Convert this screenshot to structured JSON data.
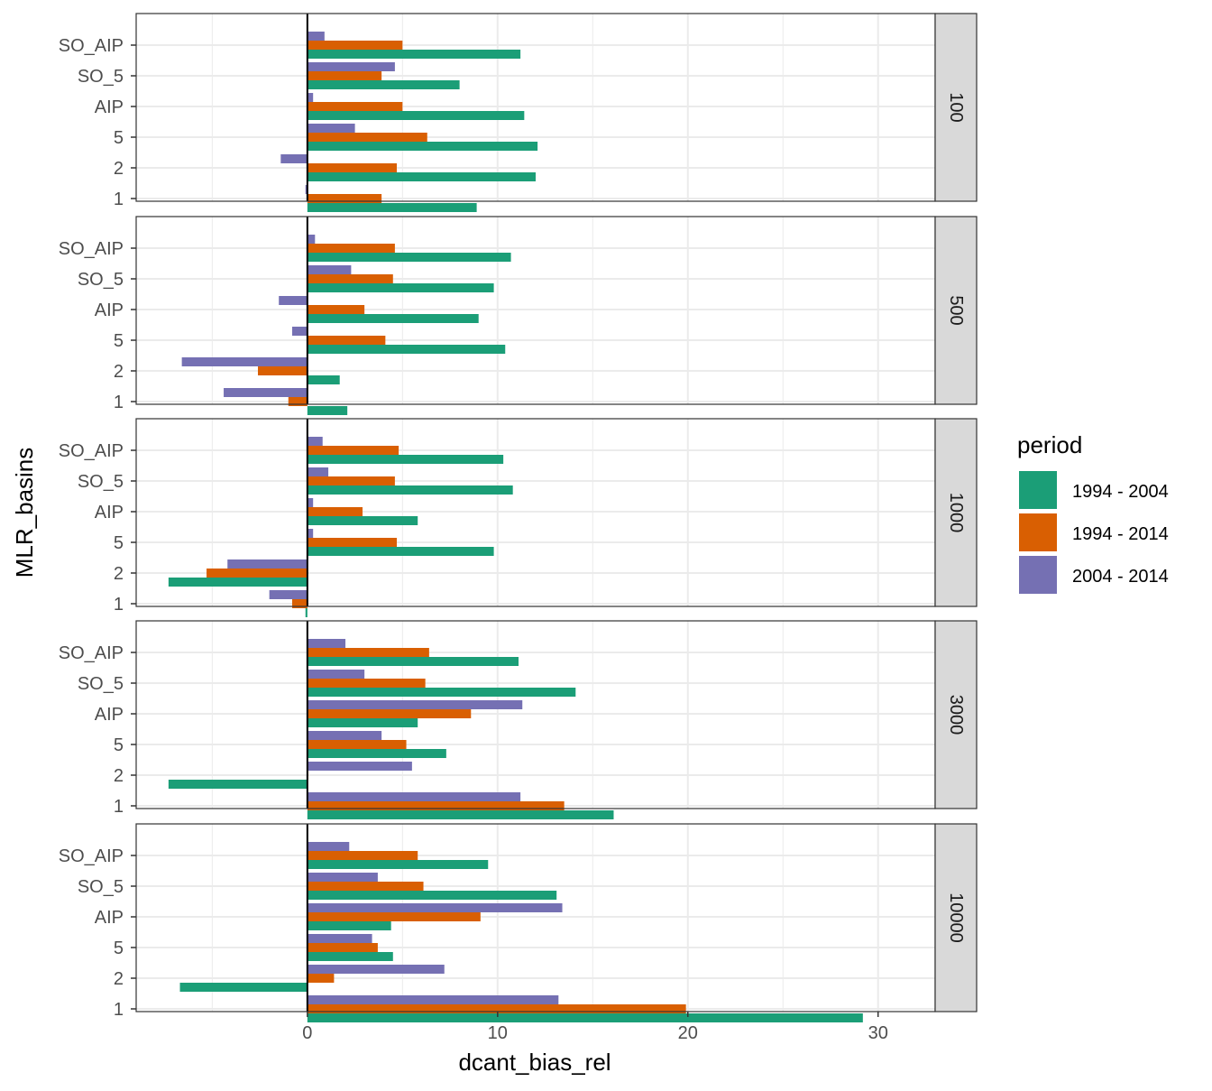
{
  "chart_data": {
    "type": "bar",
    "orientation": "horizontal",
    "facet_by": "rows",
    "xlabel": "dcant_bias_rel",
    "ylabel": "MLR_basins",
    "xlim": [
      -9,
      33
    ],
    "x_ticks": [
      0,
      10,
      20,
      30
    ],
    "grid": true,
    "categories": [
      "SO_AIP",
      "SO_5",
      "AIP",
      "5",
      "2",
      "1"
    ],
    "legend": {
      "title": "period",
      "position": "right",
      "entries": [
        "1994 - 2004",
        "1994 - 2014",
        "2004 - 2014"
      ]
    },
    "colors": {
      "1994 - 2004": "#1b9e77",
      "1994 - 2014": "#d95f02",
      "2004 - 2014": "#7570b3"
    },
    "facets": [
      {
        "label": "100",
        "series": [
          {
            "name": "1994 - 2004",
            "values": [
              11.2,
              8.0,
              11.4,
              12.1,
              12.0,
              8.9
            ]
          },
          {
            "name": "1994 - 2014",
            "values": [
              5.0,
              3.9,
              5.0,
              6.3,
              4.7,
              3.9
            ]
          },
          {
            "name": "2004 - 2014",
            "values": [
              0.9,
              4.6,
              0.3,
              2.5,
              -1.4,
              -0.1
            ]
          }
        ]
      },
      {
        "label": "500",
        "series": [
          {
            "name": "1994 - 2004",
            "values": [
              10.7,
              9.8,
              9.0,
              10.4,
              1.7,
              2.1
            ]
          },
          {
            "name": "1994 - 2014",
            "values": [
              4.6,
              4.5,
              3.0,
              4.1,
              -2.6,
              -1.0
            ]
          },
          {
            "name": "2004 - 2014",
            "values": [
              0.4,
              2.3,
              -1.5,
              -0.8,
              -6.6,
              -4.4
            ]
          }
        ]
      },
      {
        "label": "1000",
        "series": [
          {
            "name": "1994 - 2004",
            "values": [
              10.3,
              10.8,
              5.8,
              9.8,
              -7.3,
              -0.1
            ]
          },
          {
            "name": "1994 - 2014",
            "values": [
              4.8,
              4.6,
              2.9,
              4.7,
              -5.3,
              -0.8
            ]
          },
          {
            "name": "2004 - 2014",
            "values": [
              0.8,
              1.1,
              0.3,
              0.3,
              -4.2,
              -2.0
            ]
          }
        ]
      },
      {
        "label": "3000",
        "series": [
          {
            "name": "1994 - 2004",
            "values": [
              11.1,
              14.1,
              5.8,
              7.3,
              -7.3,
              16.1
            ]
          },
          {
            "name": "1994 - 2014",
            "values": [
              6.4,
              6.2,
              8.6,
              5.2,
              0.05,
              13.5
            ]
          },
          {
            "name": "2004 - 2014",
            "values": [
              2.0,
              3.0,
              11.3,
              3.9,
              5.5,
              11.2
            ]
          }
        ]
      },
      {
        "label": "10000",
        "series": [
          {
            "name": "1994 - 2004",
            "values": [
              9.5,
              13.1,
              4.4,
              4.5,
              -6.7,
              29.2
            ]
          },
          {
            "name": "1994 - 2014",
            "values": [
              5.8,
              6.1,
              9.1,
              3.7,
              1.4,
              19.9
            ]
          },
          {
            "name": "2004 - 2014",
            "values": [
              2.2,
              3.7,
              13.4,
              3.4,
              7.2,
              13.2
            ]
          }
        ]
      }
    ]
  }
}
